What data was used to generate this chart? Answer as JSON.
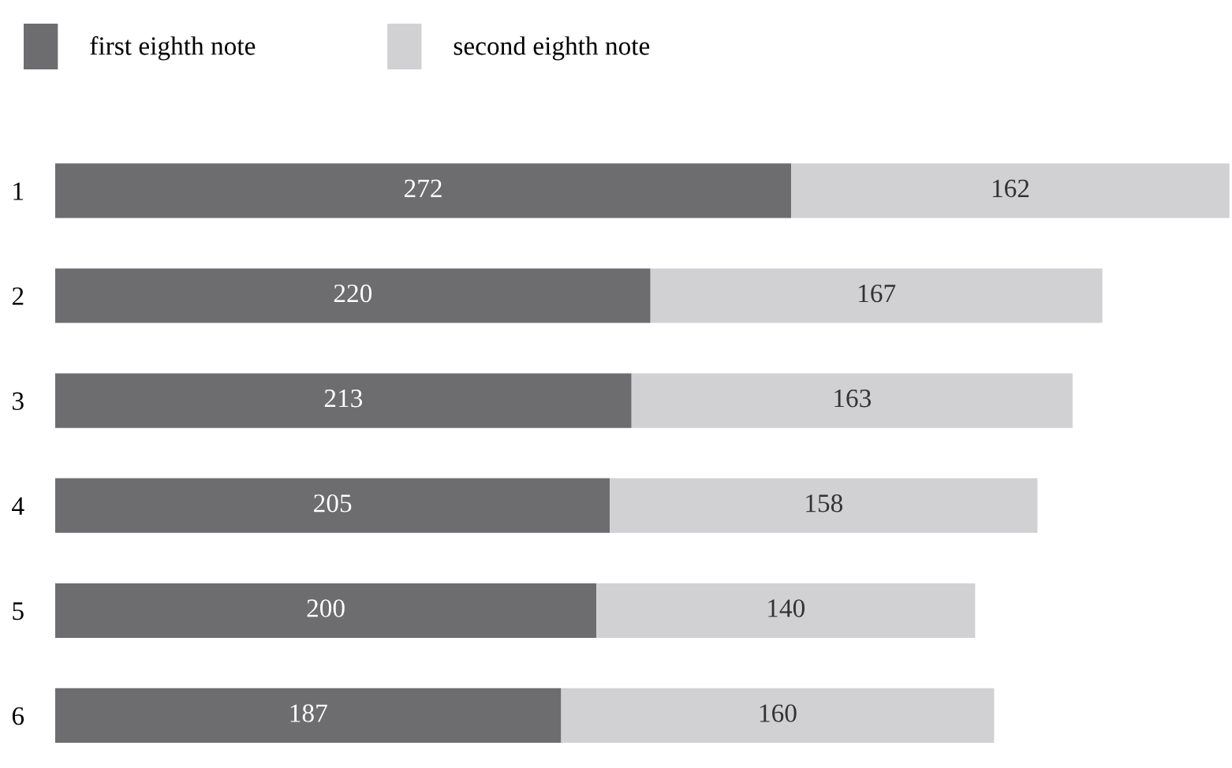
{
  "chart_data": {
    "type": "bar",
    "orientation": "horizontal",
    "stacked": true,
    "categories": [
      "1",
      "2",
      "3",
      "4",
      "5",
      "6"
    ],
    "series": [
      {
        "name": "first eighth note",
        "color": "#6d6d70",
        "values": [
          272,
          220,
          213,
          205,
          200,
          187
        ]
      },
      {
        "name": "second eighth note",
        "color": "#d1d1d3",
        "values": [
          162,
          167,
          163,
          158,
          140,
          160
        ]
      }
    ],
    "data_labels": true,
    "legend": "top left",
    "grid": false
  }
}
